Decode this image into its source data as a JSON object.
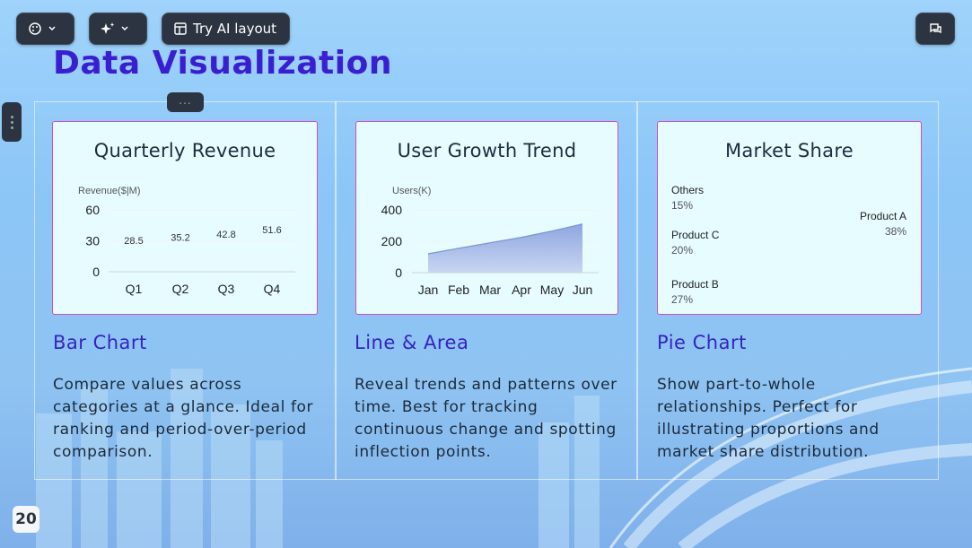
{
  "toolbar": {
    "theme_icon": "palette-icon",
    "ai_icon": "sparkle-icon",
    "ai_layout_label": "Try AI layout",
    "comment_icon": "comment-icon"
  },
  "page_title": "Data Visualization",
  "page_number": "20",
  "dots_label": "...",
  "cards": [
    {
      "chart_title": "Quarterly Revenue",
      "section_title": "Bar Chart",
      "description": "Compare values across categories at a glance. Ideal for ranking and period-over-period comparison."
    },
    {
      "chart_title": "User Growth Trend",
      "section_title": "Line & Area",
      "description": "Reveal trends and patterns over time. Best for tracking continuous change and spotting inflection points."
    },
    {
      "chart_title": "Market Share",
      "section_title": "Pie Chart",
      "description": "Show part-to-whole relationships. Perfect for illustrating proportions and market share distribution."
    }
  ],
  "chart_data": [
    {
      "type": "bar",
      "title": "Quarterly Revenue",
      "ylabel": "Revenue($|M)",
      "categories": [
        "Q1",
        "Q2",
        "Q3",
        "Q4"
      ],
      "values": [
        28.5,
        35.2,
        42.8,
        51.6
      ],
      "value_labels": [
        "28.5",
        "35.2",
        "42.8",
        "51.6"
      ],
      "yticks": [
        "60",
        "30",
        "0"
      ],
      "ylim": [
        0,
        60
      ]
    },
    {
      "type": "area",
      "title": "User Growth Trend",
      "ylabel": "Users(K)",
      "categories": [
        "Jan",
        "Feb",
        "Mar",
        "Apr",
        "May",
        "Jun"
      ],
      "values": [
        120,
        155,
        190,
        225,
        265,
        310
      ],
      "yticks": [
        "400",
        "200",
        "0"
      ],
      "ylim": [
        0,
        400
      ],
      "color": "#8fa6e0"
    },
    {
      "type": "pie",
      "title": "Market Share",
      "slices": [
        {
          "name": "Others",
          "label": "15%",
          "value": 15
        },
        {
          "name": "Product C",
          "label": "20%",
          "value": 20
        },
        {
          "name": "Product B",
          "label": "27%",
          "value": 27
        },
        {
          "name": "Product A",
          "label": "38%",
          "value": 38
        }
      ]
    }
  ]
}
